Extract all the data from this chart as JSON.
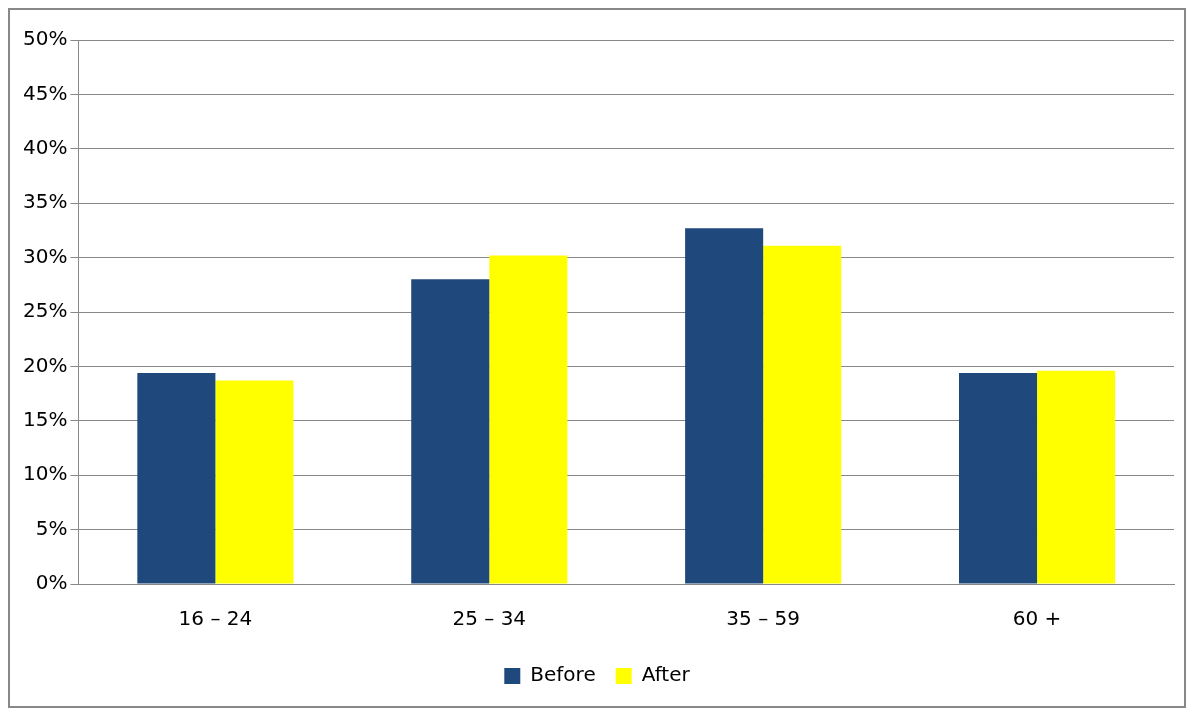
{
  "chart_data": {
    "type": "bar",
    "categories": [
      "16 – 24",
      "25 – 34",
      "35 – 59",
      "60 +"
    ],
    "series": [
      {
        "name": "Before",
        "color": "#1f497d",
        "values": [
          19.4,
          28,
          32.7,
          19.4
        ]
      },
      {
        "name": "After",
        "color": "#ffff00",
        "values": [
          18.7,
          30.2,
          31.1,
          19.6
        ]
      }
    ],
    "ylim": [
      0,
      50
    ],
    "yticks": [
      {
        "value": 0,
        "label": "0%"
      },
      {
        "value": 5,
        "label": "5%"
      },
      {
        "value": 10,
        "label": "10%"
      },
      {
        "value": 15,
        "label": "15%"
      },
      {
        "value": 20,
        "label": "20%"
      },
      {
        "value": 25,
        "label": "25%"
      },
      {
        "value": 30,
        "label": "30%"
      },
      {
        "value": 35,
        "label": "35%"
      },
      {
        "value": 40,
        "label": "40%"
      },
      {
        "value": 45,
        "label": "45%"
      },
      {
        "value": 50,
        "label": "50%"
      }
    ],
    "grid": "y",
    "legend": "bottom"
  }
}
